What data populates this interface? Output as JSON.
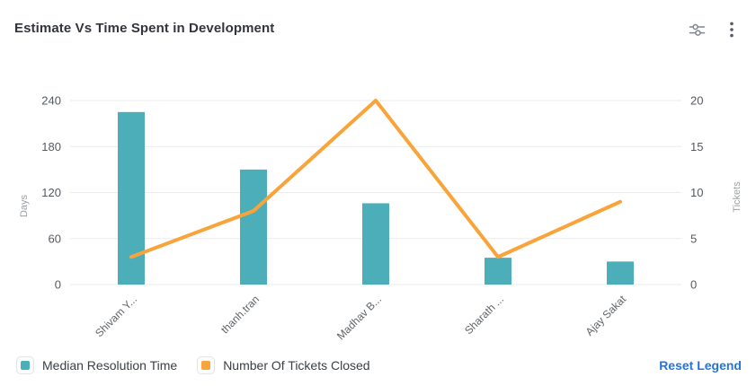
{
  "header": {
    "title": "Estimate Vs Time Spent in Development",
    "icons": [
      {
        "name": "sliders-icon"
      },
      {
        "name": "kebab-menu-icon"
      }
    ]
  },
  "chart_data": {
    "type": "bar",
    "subtype": "bar+line combo",
    "title": "Estimate Vs Time Spent in Development",
    "categories": [
      "Shivam Y...",
      "thanh.tran",
      "Madhav B...",
      "Sharath ...",
      "Ajay Sakat"
    ],
    "series": [
      {
        "name": "Median Resolution Time",
        "type": "bar",
        "axis": "left",
        "color": "#4BAEB9",
        "values": [
          225,
          150,
          106,
          35,
          30
        ]
      },
      {
        "name": "Number Of Tickets Closed",
        "type": "line",
        "axis": "right",
        "color": "#F9A43B",
        "values": [
          3,
          8,
          20,
          3,
          9
        ]
      }
    ],
    "left_axis": {
      "label": "Days",
      "ticks": [
        0,
        60,
        120,
        180,
        240
      ],
      "min": 0,
      "max": 240
    },
    "right_axis": {
      "label": "Tickets",
      "ticks": [
        0,
        5,
        10,
        15,
        20
      ],
      "min": 0,
      "max": 20
    },
    "grid": true,
    "legend_position": "bottom-left",
    "colors": {
      "grid_line": "#ebebeb",
      "tick_text": "#555a60",
      "axis_name_text": "#9ba1a7",
      "x_label_text": "#5f6469"
    }
  },
  "legend": {
    "items": [
      {
        "label": "Median Resolution Time",
        "color": "#4BAEB9"
      },
      {
        "label": "Number Of Tickets Closed",
        "color": "#F9A43B"
      }
    ],
    "reset_label": "Reset Legend",
    "reset_color": "#2474de"
  }
}
